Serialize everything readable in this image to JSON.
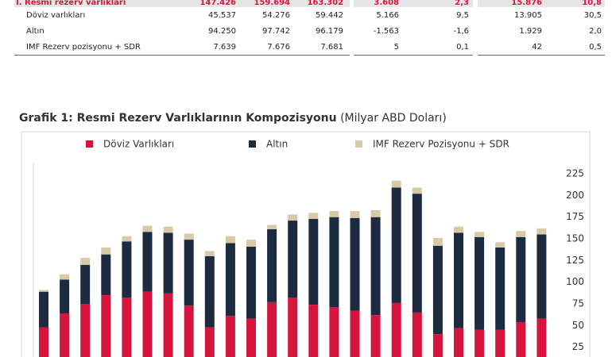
{
  "table": {
    "rows": [
      [
        "I. Resmi rezerv varlıkları",
        "147.426",
        "159.694",
        "163.302",
        "3.608",
        "2,3",
        "15.876",
        "10,8"
      ],
      [
        "Döviz varlıkları",
        "45.537",
        "54.276",
        "59.442",
        "5.166",
        "9,5",
        "13.905",
        "30,5"
      ],
      [
        "Altın",
        "94.250",
        "97.742",
        "96.179",
        "-1.563",
        "-1,6",
        "1.929",
        "2,0"
      ],
      [
        "IMF Rezerv pozisyonu + SDR",
        "7.639",
        "7.676",
        "7.681",
        "5",
        "0,1",
        "42",
        "0,5"
      ]
    ]
  },
  "chart_data": {
    "type": "stacked_bar",
    "title": "Grafik 1: Resmi Rezerv Varlıklarının Kompozisyonu",
    "subtitle": "(Milyar ABD Doları)",
    "series": [
      {
        "name": "Döviz Varlıkları",
        "color": "#d6153f",
        "values": [
          48,
          64,
          75,
          85,
          82,
          89,
          87,
          73,
          48,
          61,
          58,
          77,
          82,
          74,
          71,
          67,
          62,
          76,
          65,
          40,
          47,
          45,
          45,
          54,
          58
        ]
      },
      {
        "name": "Altın",
        "color": "#1c2b3f",
        "values": [
          41,
          39,
          45,
          47,
          65,
          69,
          70,
          76,
          82,
          84,
          83,
          84,
          89,
          99,
          104,
          107,
          113,
          133,
          137,
          102,
          110,
          107,
          95,
          98,
          97
        ]
      },
      {
        "name": "IMF Rezerv Pozisyonu + SDR",
        "color": "#d8c9a7",
        "values": [
          2,
          6,
          8,
          8,
          6,
          7,
          7,
          7,
          6,
          8,
          8,
          5,
          7,
          7,
          7,
          8,
          8,
          8,
          7,
          9,
          7,
          6,
          6,
          7,
          7
        ]
      }
    ],
    "ylim": [
      0,
      225
    ],
    "yticks": [
      25,
      50,
      75,
      100,
      125,
      150,
      175,
      200,
      225
    ]
  }
}
